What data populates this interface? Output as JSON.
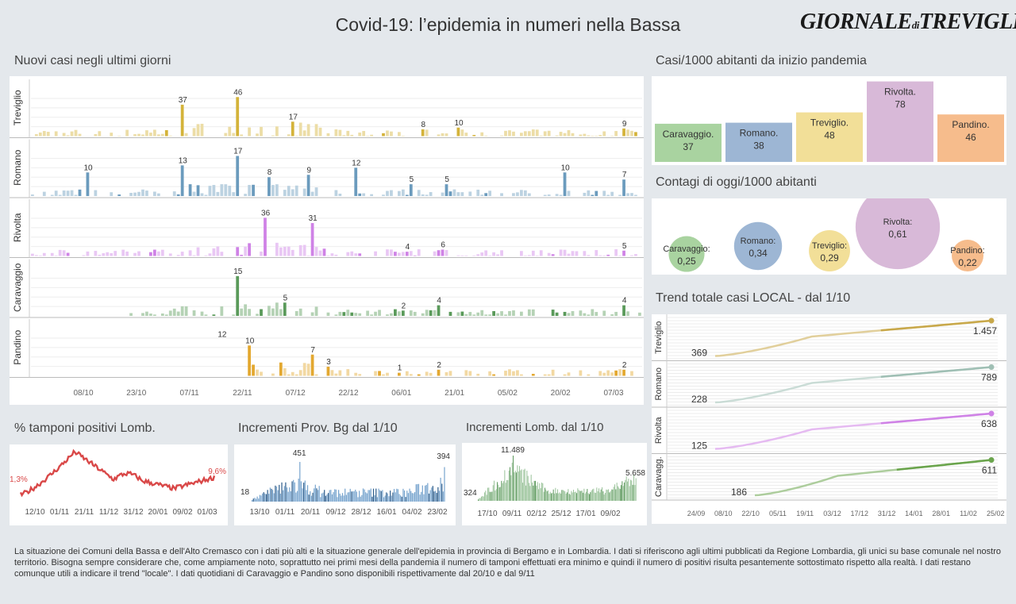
{
  "title": "Covid-19: l’epidemia  in numeri nella Bassa",
  "logo": {
    "main": "GIORNALE",
    "small": "di",
    "rest": "TREVIGLIO"
  },
  "sections": {
    "new_cases": "Nuovi casi negli ultimi   giorni",
    "per1000": "Casi/1000 abitanti da inizio pandemia",
    "today": "Contagi di oggi/1000 abitanti",
    "trend": "Trend totale casi  LOCAL - dal 1/10",
    "tamponi": "% tamponi positivi Lomb.",
    "bg": "Incrementi Prov. Bg dal 1/10",
    "lomb": "Incrementi Lomb. dal 1/10"
  },
  "footer": "La situazione dei Comuni della Bassa e dell'Alto Cremasco con i dati più alti e la situazione generale dell'epidemia in provincia di Bergamo e in Lombardia.  I dati si riferiscono agli ultimi pubblicati da Regione Lombardia, gli unici su base comunale nel  nostro territorio.  Bisogna sempre considerare che, come ampiamente noto, soprattutto nei primi mesi della pandemia il numero di tamponi effettuati era minimo e quindi il numero di positivi risulta pesantemente sottostimato rispetto alla realtà. I dati restano comunque utili a indicare il trend \"locale\".  I dati quotidiani di Caravaggio e Pandino sono disponibili rispettivamente dal 20/10 e dal 9/11",
  "chart_data": [
    {
      "id": "new_cases",
      "type": "bar",
      "title": "Nuovi casi negli ultimi   giorni",
      "x_ticks": [
        "08/10",
        "23/10",
        "07/11",
        "22/11",
        "07/12",
        "22/12",
        "06/01",
        "21/01",
        "05/02",
        "20/02",
        "07/03"
      ],
      "series": [
        {
          "name": "Treviglio",
          "color": "#d4b33a",
          "max": 50,
          "labels": [
            {
              "day": 38,
              "value": 37
            },
            {
              "day": 52,
              "value": 46
            },
            {
              "day": 66,
              "value": 17
            },
            {
              "day": 99,
              "value": 8
            },
            {
              "day": 108,
              "value": 10
            },
            {
              "day": 150,
              "value": 9
            }
          ]
        },
        {
          "name": "Romano",
          "color": "#6b9bbd",
          "max": 18,
          "labels": [
            {
              "day": 14,
              "value": 10
            },
            {
              "day": 38,
              "value": 13
            },
            {
              "day": 52,
              "value": 17
            },
            {
              "day": 60,
              "value": 8
            },
            {
              "day": 70,
              "value": 9
            },
            {
              "day": 82,
              "value": 12
            },
            {
              "day": 96,
              "value": 5
            },
            {
              "day": 105,
              "value": 5
            },
            {
              "day": 135,
              "value": 10
            },
            {
              "day": 150,
              "value": 7
            }
          ]
        },
        {
          "name": "Rivolta",
          "color": "#cf82e6",
          "max": 40,
          "labels": [
            {
              "day": 59,
              "value": 36
            },
            {
              "day": 71,
              "value": 31
            },
            {
              "day": 95,
              "value": 4
            },
            {
              "day": 104,
              "value": 6
            },
            {
              "day": 150,
              "value": 5
            }
          ]
        },
        {
          "name": "Caravaggio",
          "color": "#5a9a5a",
          "max": 16,
          "labels": [
            {
              "day": 52,
              "value": 15
            },
            {
              "day": 64,
              "value": 5
            },
            {
              "day": 94,
              "value": 2
            },
            {
              "day": 103,
              "value": 4
            },
            {
              "day": 150,
              "value": 4
            }
          ]
        },
        {
          "name": "Pandino",
          "color": "#e3a830",
          "max": 14,
          "labels": [
            {
              "day": 48,
              "value": 12
            },
            {
              "day": 55,
              "value": 10
            },
            {
              "day": 71,
              "value": 7
            },
            {
              "day": 75,
              "value": 3
            },
            {
              "day": 93,
              "value": 1
            },
            {
              "day": 103,
              "value": 2
            },
            {
              "day": 150,
              "value": 2
            }
          ]
        }
      ]
    },
    {
      "id": "per1000",
      "type": "bar",
      "title": "Casi/1000 abitanti da inizio pandemia",
      "categories": [
        "Caravaggio.",
        "Romano.",
        "Treviglio.",
        "Rivolta.",
        "Pandino."
      ],
      "values": [
        37,
        38,
        48,
        78,
        46
      ],
      "colors": [
        "#a9d3a0",
        "#9db6d4",
        "#f2df98",
        "#d8b9d8",
        "#f6bc8c"
      ]
    },
    {
      "id": "today",
      "type": "scatter",
      "title": "Contagi di oggi/1000 abitanti",
      "categories": [
        "Caravaggio:",
        "Romano:",
        "Treviglio:",
        "Rivolta:",
        "Pandino:"
      ],
      "values": [
        "0,25",
        "0,34",
        "0,29",
        "0,61",
        "0,22"
      ],
      "sizes": [
        0.25,
        0.34,
        0.29,
        0.61,
        0.22
      ],
      "colors": [
        "#a9d3a0",
        "#9db6d4",
        "#f2df98",
        "#d8b9d8",
        "#f6bc8c"
      ]
    },
    {
      "id": "trend",
      "type": "line",
      "title": "Trend totale casi  LOCAL - dal 1/10",
      "x_ticks": [
        "24/09",
        "08/10",
        "22/10",
        "05/11",
        "19/11",
        "03/12",
        "17/12",
        "31/12",
        "14/01",
        "28/01",
        "11/02",
        "25/02"
      ],
      "series": [
        {
          "name": "Treviglio",
          "start": 369,
          "end": "1.457",
          "color": "#c8a84a"
        },
        {
          "name": "Romano",
          "start": 228,
          "end": "789",
          "color": "#9fbfb4"
        },
        {
          "name": "Rivolta",
          "start": 125,
          "end": "638",
          "color": "#cf82e6"
        },
        {
          "name": "Caravagg.",
          "start": 186,
          "end": "611",
          "color": "#6aa44c"
        }
      ]
    },
    {
      "id": "tamponi",
      "type": "line",
      "title": "% tamponi positivi Lomb.",
      "first_label": "1,3%",
      "last_label": "9,6%",
      "x_ticks": [
        "12/10",
        "01/11",
        "21/11",
        "11/12",
        "31/12",
        "20/01",
        "09/02",
        "01/03"
      ],
      "color": "#d94848"
    },
    {
      "id": "bg",
      "type": "bar",
      "title": "Incrementi Prov. Bg dal 1/10",
      "first_label": "18",
      "peak_label": "451",
      "last_label": "394",
      "x_ticks": [
        "13/10",
        "01/11",
        "20/11",
        "09/12",
        "28/12",
        "16/01",
        "04/02",
        "23/02"
      ],
      "color": "#7aa6cf"
    },
    {
      "id": "lomb",
      "type": "bar",
      "title": "Incrementi Lomb. dal 1/10",
      "first_label": "324",
      "peak_label": "11.489",
      "last_label": "5.658",
      "x_ticks": [
        "17/10",
        "09/11",
        "02/12",
        "25/12",
        "17/01",
        "09/02"
      ],
      "color": "#9cc49c"
    }
  ]
}
